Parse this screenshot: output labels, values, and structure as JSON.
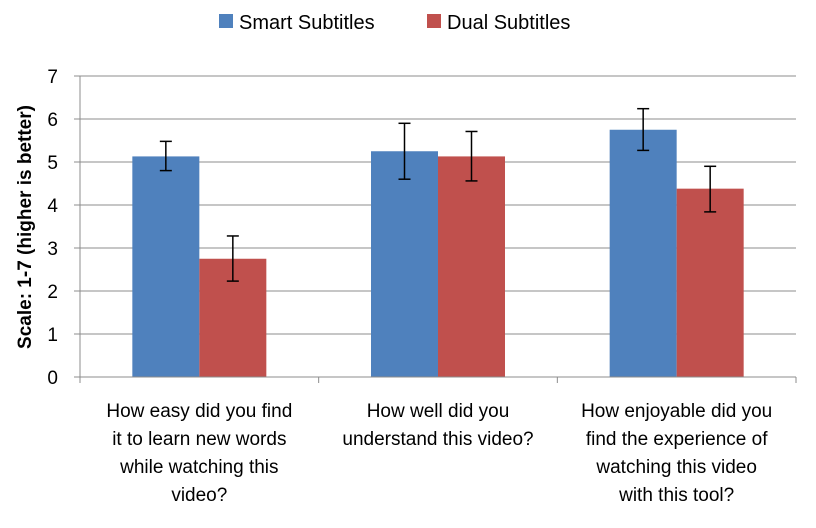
{
  "chart_data": {
    "type": "bar",
    "categories": [
      [
        "How easy did you find",
        "it to learn new words",
        "while watching this",
        "video?"
      ],
      [
        "How well did you",
        "understand this video?"
      ],
      [
        "How enjoyable did you",
        "find the experience of",
        "watching this video",
        "with this tool?"
      ]
    ],
    "series": [
      {
        "name": "Smart Subtitles",
        "color": "#4f81bd",
        "values": [
          5.13,
          5.25,
          5.75
        ],
        "err_low": [
          4.8,
          4.6,
          5.27
        ],
        "err_high": [
          5.48,
          5.9,
          6.24
        ]
      },
      {
        "name": "Dual Subtitles",
        "color": "#c0504d",
        "values": [
          2.75,
          5.13,
          4.38
        ],
        "err_low": [
          2.23,
          4.56,
          3.84
        ],
        "err_high": [
          3.28,
          5.71,
          4.9
        ]
      }
    ],
    "title": "",
    "xlabel": "",
    "ylabel": "Scale: 1-7 (higher is better)",
    "ylim": [
      0,
      7
    ],
    "yticks": [
      "0",
      "1",
      "2",
      "3",
      "4",
      "5",
      "6",
      "7"
    ],
    "grid": true,
    "legend": "top"
  }
}
